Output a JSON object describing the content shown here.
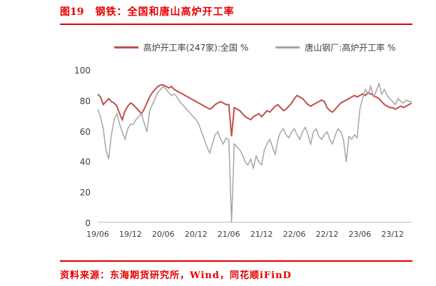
{
  "header": {
    "figure_label": "图19",
    "title": "钢铁：全国和唐山高炉开工率"
  },
  "footer": {
    "source": "资料来源：东海期货研究所，Wind，同花顺iFinD"
  },
  "chart_data": {
    "type": "line",
    "title": "图19 钢铁：全国和唐山高炉开工率",
    "legend_position": "top",
    "grid": false,
    "ylim": [
      0,
      100
    ],
    "y_ticks": [
      "100",
      "80",
      "60",
      "40",
      "20",
      "0"
    ],
    "x_tick_labels": [
      "19/06",
      "19/12",
      "20/06",
      "20/12",
      "21/06",
      "21/12",
      "22/06",
      "22/12",
      "23/06",
      "23/12"
    ],
    "x_tick_indices": [
      0,
      12,
      24,
      36,
      48,
      60,
      72,
      84,
      96,
      108
    ],
    "colors": {
      "accent_red": "#e60000",
      "axis_text": "#404040",
      "axis_line": "#bfbfbf"
    },
    "series": [
      {
        "name": "高炉开工率(247家):全国 %",
        "color": "#c0504d",
        "values": [
          85,
          83,
          78,
          80,
          82,
          80,
          79,
          77,
          72,
          68,
          74,
          77,
          79,
          78,
          76,
          74,
          72,
          75,
          79,
          83,
          86,
          88,
          90,
          91,
          91,
          90,
          89,
          90,
          88,
          87,
          86,
          85,
          84,
          83,
          82,
          81,
          80,
          79,
          78,
          77,
          76,
          75,
          76,
          78,
          79,
          80,
          79,
          78,
          78,
          57,
          76,
          75,
          74,
          72,
          70,
          69,
          68,
          70,
          71,
          72,
          70,
          72,
          74,
          73,
          75,
          77,
          78,
          76,
          74,
          75,
          77,
          79,
          82,
          84,
          83,
          82,
          80,
          78,
          77,
          78,
          79,
          80,
          81,
          80,
          76,
          74,
          73,
          75,
          77,
          79,
          80,
          81,
          82,
          83,
          84,
          83,
          84,
          85,
          84,
          86,
          85,
          84,
          83,
          82,
          80,
          78,
          77,
          76,
          76,
          75,
          76,
          77,
          76,
          77,
          78,
          79
        ]
      },
      {
        "name": "唐山钢厂:高炉开工率 %",
        "color": "#a6a6a6",
        "values": [
          75,
          70,
          62,
          48,
          42,
          58,
          68,
          72,
          65,
          60,
          55,
          62,
          65,
          65,
          68,
          70,
          72,
          66,
          60,
          74,
          78,
          82,
          86,
          88,
          90,
          88,
          86,
          84,
          85,
          83,
          80,
          78,
          76,
          74,
          72,
          70,
          68,
          65,
          60,
          55,
          50,
          46,
          52,
          58,
          60,
          55,
          52,
          56,
          55,
          0,
          52,
          50,
          48,
          45,
          40,
          38,
          42,
          36,
          44,
          40,
          38,
          48,
          52,
          55,
          50,
          45,
          55,
          60,
          62,
          58,
          56,
          60,
          62,
          58,
          55,
          60,
          63,
          58,
          52,
          60,
          62,
          57,
          55,
          58,
          60,
          55,
          52,
          58,
          62,
          60,
          55,
          40,
          57,
          55,
          58,
          56,
          75,
          82,
          88,
          85,
          90,
          83,
          87,
          92,
          85,
          88,
          84,
          82,
          80,
          78,
          82,
          80,
          79,
          81,
          80,
          80
        ]
      }
    ]
  }
}
